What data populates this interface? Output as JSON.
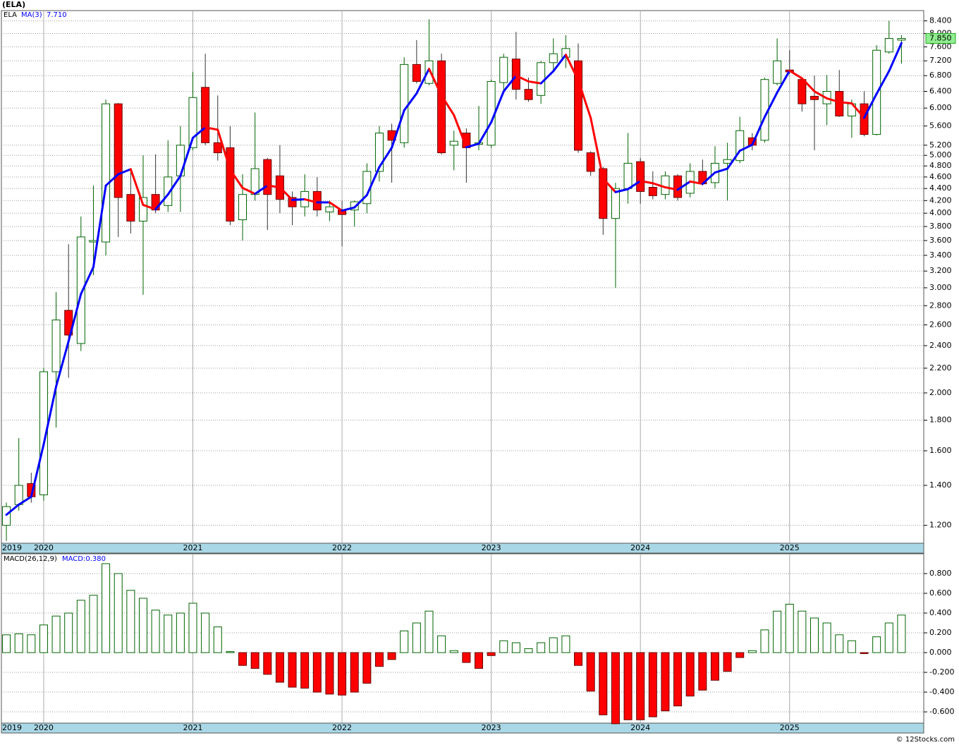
{
  "chart_data": [
    {
      "type": "candlestick",
      "title": "(ELA)",
      "name": "ELA",
      "categories": [
        "2019",
        null,
        null,
        "2020",
        null,
        null,
        null,
        null,
        null,
        null,
        null,
        null,
        null,
        null,
        null,
        "2021",
        null,
        null,
        null,
        null,
        null,
        null,
        null,
        null,
        null,
        null,
        null,
        "2022",
        null,
        null,
        null,
        null,
        null,
        null,
        null,
        null,
        null,
        null,
        null,
        "2023",
        null,
        null,
        null,
        null,
        null,
        null,
        null,
        null,
        null,
        null,
        null,
        "2024",
        null,
        null,
        null,
        null,
        null,
        null,
        null,
        null,
        null,
        null,
        null,
        "2025",
        null,
        null,
        null,
        null,
        null,
        null,
        null,
        null,
        null
      ],
      "open": [
        1.2,
        1.3,
        1.41,
        1.35,
        2.17,
        2.75,
        2.42,
        3.58,
        3.58,
        6.1,
        4.3,
        3.88,
        4.3,
        4.12,
        4.62,
        5.15,
        6.5,
        5.25,
        5.15,
        3.9,
        4.3,
        4.92,
        4.62,
        4.25,
        4.1,
        4.35,
        4.02,
        4.05,
        4.05,
        4.15,
        4.7,
        5.5,
        5.25,
        7.1,
        6.6,
        7.2,
        5.2,
        5.45,
        5.22,
        5.2,
        6.62,
        7.25,
        6.45,
        6.3,
        7.15,
        7.3,
        7.2,
        5.05,
        4.75,
        3.92,
        4.4,
        4.88,
        4.42,
        4.3,
        4.62,
        4.32,
        4.7,
        4.5,
        4.85,
        4.9,
        5.35,
        5.3,
        6.6,
        6.95,
        6.7,
        6.28,
        6.1,
        6.4,
        5.82,
        6.1,
        5.42,
        7.45,
        7.8
      ],
      "high": [
        1.31,
        1.68,
        1.47,
        2.2,
        2.95,
        3.55,
        3.95,
        4.45,
        6.2,
        6.12,
        4.72,
        5.0,
        5.02,
        5.3,
        5.6,
        6.9,
        7.4,
        6.3,
        5.6,
        4.65,
        5.9,
        4.95,
        5.2,
        4.35,
        4.65,
        4.6,
        4.2,
        4.2,
        4.2,
        4.85,
        5.6,
        5.65,
        7.3,
        7.8,
        8.45,
        7.4,
        5.5,
        5.55,
        6.05,
        6.7,
        7.4,
        8.05,
        6.75,
        7.2,
        7.85,
        7.95,
        7.7,
        5.08,
        4.78,
        4.5,
        5.45,
        4.95,
        4.7,
        4.7,
        4.65,
        4.85,
        4.92,
        5.18,
        5.25,
        5.8,
        5.45,
        6.75,
        7.85,
        7.5,
        6.72,
        6.8,
        6.82,
        6.95,
        6.2,
        6.4,
        7.65,
        8.4,
        7.95
      ],
      "low": [
        1.13,
        1.27,
        1.31,
        1.32,
        1.75,
        2.12,
        2.35,
        3.15,
        3.4,
        3.65,
        3.7,
        2.92,
        4.0,
        4.02,
        4.02,
        5.1,
        5.2,
        4.9,
        3.82,
        3.6,
        4.2,
        3.75,
        4.0,
        3.82,
        3.95,
        3.95,
        3.88,
        3.52,
        3.8,
        4.0,
        4.52,
        4.5,
        5.15,
        6.6,
        6.55,
        5.02,
        4.72,
        4.5,
        5.1,
        5.15,
        6.4,
        6.2,
        6.15,
        6.1,
        6.95,
        7.0,
        5.05,
        4.62,
        3.68,
        3.0,
        4.15,
        4.15,
        4.22,
        4.22,
        4.2,
        4.25,
        4.45,
        4.4,
        4.2,
        4.85,
        5.1,
        5.25,
        6.55,
        6.85,
        5.92,
        5.1,
        5.62,
        5.8,
        5.35,
        5.38,
        5.4,
        7.4,
        7.12
      ],
      "close": [
        1.29,
        1.4,
        1.34,
        2.17,
        2.65,
        2.5,
        3.65,
        3.6,
        6.1,
        4.25,
        3.88,
        4.25,
        4.05,
        4.6,
        5.2,
        6.25,
        5.25,
        5.05,
        3.88,
        4.3,
        4.75,
        4.3,
        4.22,
        4.1,
        4.35,
        4.05,
        4.1,
        3.98,
        4.18,
        4.7,
        5.45,
        5.3,
        7.1,
        6.65,
        7.2,
        5.05,
        5.28,
        5.15,
        5.25,
        6.65,
        7.3,
        6.45,
        6.2,
        7.15,
        7.4,
        7.55,
        5.1,
        4.7,
        3.92,
        4.4,
        4.85,
        4.35,
        4.28,
        4.62,
        4.25,
        4.7,
        4.48,
        4.85,
        4.92,
        5.5,
        5.2,
        6.7,
        7.2,
        6.9,
        6.1,
        6.2,
        6.4,
        5.82,
        6.1,
        5.42,
        7.5,
        7.85,
        7.85
      ],
      "up_color": "#ffffff",
      "down_color": "#ff0000",
      "outline_color": "#006400",
      "ma": {
        "name": "MA(3)",
        "value_label": "7.710",
        "up_color": "#0000ff",
        "down_color": "#ff0000",
        "values": [
          1.25,
          1.3,
          1.34,
          1.64,
          2.05,
          2.44,
          2.93,
          3.25,
          4.45,
          4.65,
          4.74,
          4.13,
          4.06,
          4.3,
          4.62,
          5.35,
          5.57,
          5.52,
          4.73,
          4.41,
          4.31,
          4.45,
          4.42,
          4.21,
          4.22,
          4.17,
          4.17,
          4.04,
          4.09,
          4.29,
          4.78,
          5.15,
          5.95,
          6.35,
          6.98,
          6.3,
          5.84,
          5.16,
          5.23,
          5.68,
          6.4,
          6.8,
          6.65,
          6.6,
          6.92,
          7.37,
          6.68,
          5.78,
          4.57,
          4.34,
          4.39,
          4.53,
          4.49,
          4.42,
          4.38,
          4.52,
          4.48,
          4.68,
          4.75,
          5.09,
          5.21,
          5.8,
          6.37,
          6.93,
          6.73,
          6.4,
          6.23,
          6.14,
          6.11,
          5.78,
          6.34,
          6.92,
          7.71
        ]
      },
      "price_tag": {
        "value": 7.85,
        "label": "7.850",
        "color": "#90ee90"
      },
      "log_scale": true,
      "grid": true,
      "ylim": [
        1.12,
        8.74
      ],
      "yticks": [
        {
          "value": 1.2,
          "label": "1.200"
        },
        {
          "value": 1.4,
          "label": "1.400"
        },
        {
          "value": 1.6,
          "label": "1.600"
        },
        {
          "value": 1.8,
          "label": "1.800"
        },
        {
          "value": 2.0,
          "label": "2.000"
        },
        {
          "value": 2.2,
          "label": "2.200"
        },
        {
          "value": 2.4,
          "label": "2.400"
        },
        {
          "value": 2.6,
          "label": "2.600"
        },
        {
          "value": 2.8,
          "label": "2.800"
        },
        {
          "value": 3.0,
          "label": "3.000"
        },
        {
          "value": 3.2,
          "label": "3.200"
        },
        {
          "value": 3.4,
          "label": "3.400"
        },
        {
          "value": 3.6,
          "label": "3.600"
        },
        {
          "value": 3.8,
          "label": "3.800"
        },
        {
          "value": 4.0,
          "label": "4.000"
        },
        {
          "value": 4.2,
          "label": "4.200"
        },
        {
          "value": 4.4,
          "label": "4.400"
        },
        {
          "value": 4.6,
          "label": "4.600"
        },
        {
          "value": 4.8,
          "label": "4.800"
        },
        {
          "value": 5.0,
          "label": "5.000"
        },
        {
          "value": 5.2,
          "label": "5.200"
        },
        {
          "value": 5.6,
          "label": "5.600"
        },
        {
          "value": 6.0,
          "label": "6.000"
        },
        {
          "value": 6.4,
          "label": "6.400"
        },
        {
          "value": 6.8,
          "label": "6.800"
        },
        {
          "value": 7.2,
          "label": "7.200"
        },
        {
          "value": 7.6,
          "label": "7.600"
        },
        {
          "value": 8.0,
          "label": "8.000"
        },
        {
          "value": 8.4,
          "label": "8.400"
        }
      ]
    },
    {
      "type": "bar",
      "title": "MACD(26,12,9)",
      "value_label": "MACD:0.380",
      "categories": [
        "2019",
        null,
        null,
        "2020",
        null,
        null,
        null,
        null,
        null,
        null,
        null,
        null,
        null,
        null,
        null,
        "2021",
        null,
        null,
        null,
        null,
        null,
        null,
        null,
        null,
        null,
        null,
        null,
        "2022",
        null,
        null,
        null,
        null,
        null,
        null,
        null,
        null,
        null,
        null,
        null,
        "2023",
        null,
        null,
        null,
        null,
        null,
        null,
        null,
        null,
        null,
        null,
        null,
        "2024",
        null,
        null,
        null,
        null,
        null,
        null,
        null,
        null,
        null,
        null,
        null,
        "2025",
        null,
        null,
        null,
        null,
        null,
        null,
        null,
        null,
        null
      ],
      "values": [
        0.18,
        0.19,
        0.18,
        0.28,
        0.37,
        0.4,
        0.53,
        0.58,
        0.9,
        0.8,
        0.63,
        0.55,
        0.43,
        0.38,
        0.4,
        0.5,
        0.4,
        0.26,
        0.01,
        -0.13,
        -0.16,
        -0.22,
        -0.3,
        -0.35,
        -0.36,
        -0.4,
        -0.42,
        -0.43,
        -0.4,
        -0.31,
        -0.14,
        -0.07,
        0.22,
        0.3,
        0.42,
        0.17,
        0.02,
        -0.1,
        -0.16,
        -0.03,
        0.12,
        0.1,
        0.04,
        0.1,
        0.15,
        0.17,
        -0.13,
        -0.39,
        -0.63,
        -0.72,
        -0.68,
        -0.68,
        -0.65,
        -0.59,
        -0.54,
        -0.44,
        -0.38,
        -0.28,
        -0.19,
        -0.05,
        0.02,
        0.23,
        0.42,
        0.49,
        0.42,
        0.35,
        0.3,
        0.18,
        0.12,
        -0.01,
        0.16,
        0.3,
        0.38
      ],
      "up_color": "#ffffff",
      "down_color": "#ff0000",
      "outline_color": "#006400",
      "grid": true,
      "ylim": [
        -0.714,
        1.0
      ],
      "yticks": [
        {
          "value": -0.6,
          "label": "-0.600"
        },
        {
          "value": -0.4,
          "label": "-0.400"
        },
        {
          "value": -0.2,
          "label": "-0.200"
        },
        {
          "value": 0,
          "label": "0.000"
        },
        {
          "value": 0.2,
          "label": "0.200"
        },
        {
          "value": 0.4,
          "label": "0.400"
        },
        {
          "value": 0.6,
          "label": "0.600"
        },
        {
          "value": 0.8,
          "label": "0.800"
        }
      ]
    }
  ],
  "footer": "© 12Stocks.com"
}
